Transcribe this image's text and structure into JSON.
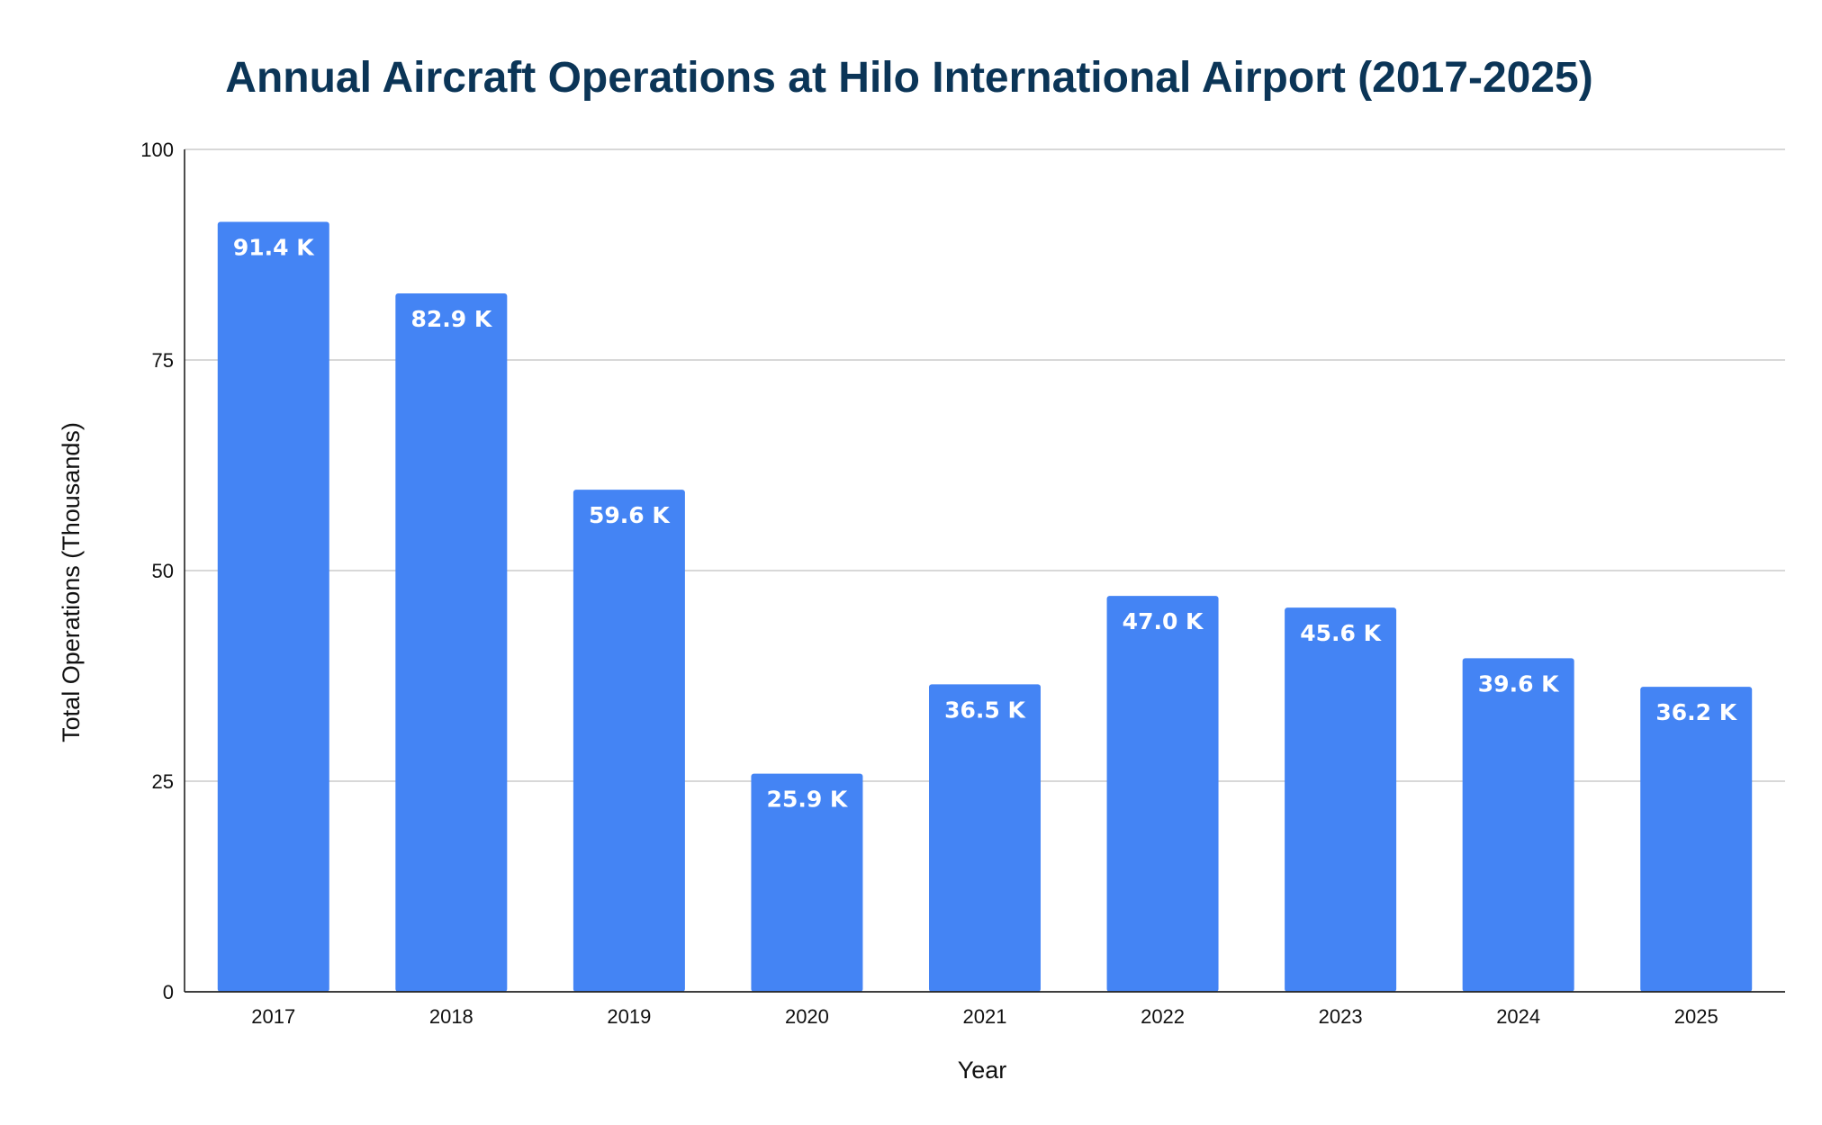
{
  "chart_data": {
    "type": "bar",
    "title": "Annual Aircraft Operations at Hilo International Airport (2017-2025)",
    "xlabel": "Year",
    "ylabel": "Total Operations (Thousands)",
    "categories": [
      "2017",
      "2018",
      "2019",
      "2020",
      "2021",
      "2022",
      "2023",
      "2024",
      "2025"
    ],
    "values": [
      91.4,
      82.9,
      59.6,
      25.9,
      36.5,
      47.0,
      45.6,
      39.6,
      36.2
    ],
    "data_labels": [
      "91.4 K",
      "82.9 K",
      "59.6 K",
      "25.9 K",
      "36.5 K",
      "47.0 K",
      "45.6 K",
      "39.6 K",
      "36.2 K"
    ],
    "ylim": [
      0,
      100
    ],
    "yticks": [
      0,
      25,
      50,
      75,
      100
    ],
    "grid": true,
    "legend": "none",
    "colors": {
      "bar": "#4484f4",
      "title": "#0b3557",
      "grid": "#cccccc",
      "axis": "#222222",
      "text": "#111111",
      "data_label": "#ffffff"
    }
  }
}
